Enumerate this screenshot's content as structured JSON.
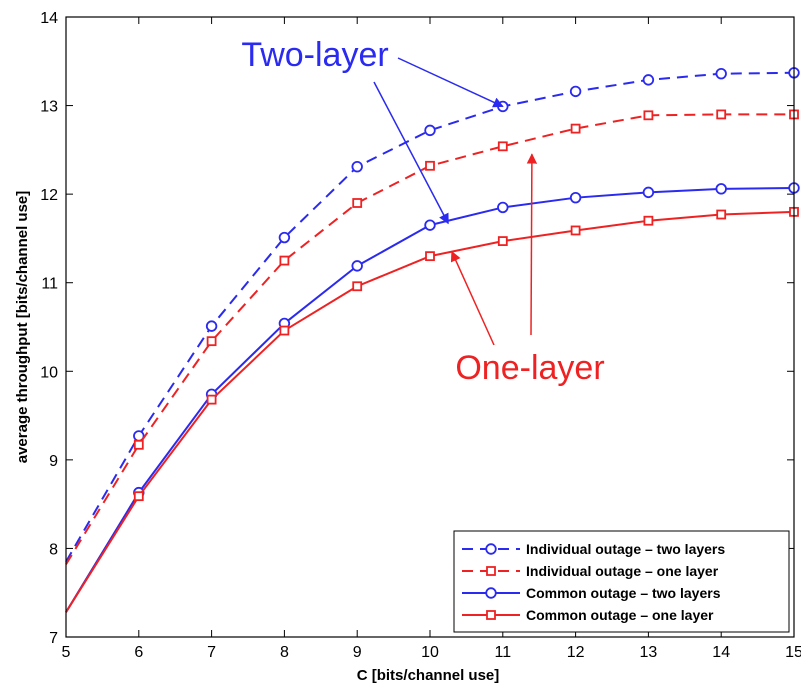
{
  "chart_data": {
    "type": "line",
    "xlabel": "C [bits/channel use]",
    "ylabel": "average throughput [bits/channel use]",
    "xlim": [
      5,
      15
    ],
    "ylim": [
      7,
      14
    ],
    "x_ticks": [
      5,
      6,
      7,
      8,
      9,
      10,
      11,
      12,
      13,
      14,
      15
    ],
    "y_ticks": [
      7,
      8,
      9,
      10,
      11,
      12,
      13,
      14
    ],
    "grid": false,
    "legend_position": "bottom-right",
    "series": [
      {
        "name": "Individual outage – two layers",
        "color": "#2a2af0",
        "line_style": "dashed",
        "marker": "circle",
        "x": [
          5,
          6,
          7,
          8,
          9,
          10,
          11,
          12,
          13,
          14,
          15
        ],
        "y": [
          7.85,
          9.27,
          10.51,
          11.51,
          12.31,
          12.72,
          12.99,
          13.16,
          13.29,
          13.36,
          13.37
        ]
      },
      {
        "name": "Individual outage – one layer",
        "color": "#ee2222",
        "line_style": "dashed",
        "marker": "square",
        "x": [
          5,
          6,
          7,
          8,
          9,
          10,
          11,
          12,
          13,
          14,
          15
        ],
        "y": [
          7.82,
          9.17,
          10.34,
          11.25,
          11.9,
          12.32,
          12.54,
          12.74,
          12.89,
          12.9,
          12.9
        ]
      },
      {
        "name": "Common outage – two layers",
        "color": "#2a2af0",
        "line_style": "solid",
        "marker": "circle",
        "x": [
          5,
          6,
          7,
          8,
          9,
          10,
          11,
          12,
          13,
          14,
          15
        ],
        "y": [
          7.28,
          8.63,
          9.74,
          10.54,
          11.19,
          11.65,
          11.85,
          11.96,
          12.02,
          12.06,
          12.07
        ]
      },
      {
        "name": "Common outage – one layer",
        "color": "#ee2222",
        "line_style": "solid",
        "marker": "square",
        "x": [
          5,
          6,
          7,
          8,
          9,
          10,
          11,
          12,
          13,
          14,
          15
        ],
        "y": [
          7.28,
          8.59,
          9.68,
          10.46,
          10.96,
          11.3,
          11.47,
          11.59,
          11.7,
          11.77,
          11.8
        ]
      }
    ],
    "annotations": [
      {
        "text": "Two-layer",
        "color": "#2a2af0",
        "arrows_to": [
          {
            "x": 11.0,
            "y": 12.99
          },
          {
            "x": 10.25,
            "y": 11.67
          }
        ]
      },
      {
        "text": "One-layer",
        "color": "#ee2222",
        "arrows_to": [
          {
            "x": 10.3,
            "y": 11.35
          },
          {
            "x": 11.4,
            "y": 12.45
          }
        ]
      }
    ]
  }
}
